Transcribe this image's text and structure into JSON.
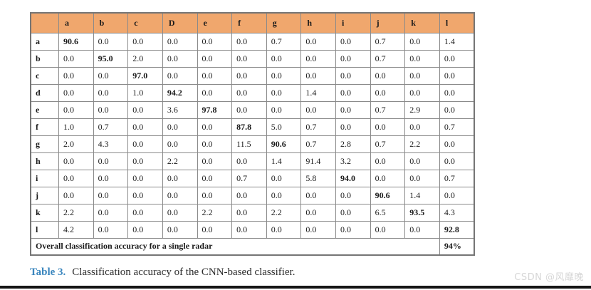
{
  "page": {
    "background": "#ffffff",
    "bottom_bar_color": "#161616"
  },
  "table": {
    "header_bg": "#f0a76d",
    "border_color": "#8a8a8a",
    "columns": [
      "",
      "a",
      "b",
      "c",
      "D",
      "e",
      "f",
      "g",
      "h",
      "i",
      "j",
      "k",
      "l"
    ],
    "rows": [
      {
        "label": "a",
        "bold_col": 0,
        "values": [
          "90.6",
          "0.0",
          "0.0",
          "0.0",
          "0.0",
          "0.0",
          "0.7",
          "0.0",
          "0.0",
          "0.7",
          "0.0",
          "1.4"
        ]
      },
      {
        "label": "b",
        "bold_col": 1,
        "values": [
          "0.0",
          "95.0",
          "2.0",
          "0.0",
          "0.0",
          "0.0",
          "0.0",
          "0.0",
          "0.0",
          "0.7",
          "0.0",
          "0.0"
        ]
      },
      {
        "label": "c",
        "bold_col": 2,
        "values": [
          "0.0",
          "0.0",
          "97.0",
          "0.0",
          "0.0",
          "0.0",
          "0.0",
          "0.0",
          "0.0",
          "0.0",
          "0.0",
          "0.0"
        ]
      },
      {
        "label": "d",
        "bold_col": 3,
        "values": [
          "0.0",
          "0.0",
          "1.0",
          "94.2",
          "0.0",
          "0.0",
          "0.0",
          "1.4",
          "0.0",
          "0.0",
          "0.0",
          "0.0"
        ]
      },
      {
        "label": "e",
        "bold_col": 4,
        "values": [
          "0.0",
          "0.0",
          "0.0",
          "3.6",
          "97.8",
          "0.0",
          "0.0",
          "0.0",
          "0.0",
          "0.7",
          "2.9",
          "0.0"
        ]
      },
      {
        "label": "f",
        "bold_col": 5,
        "values": [
          "1.0",
          "0.7",
          "0.0",
          "0.0",
          "0.0",
          "87.8",
          "5.0",
          "0.7",
          "0.0",
          "0.0",
          "0.0",
          "0.7"
        ]
      },
      {
        "label": "g",
        "bold_col": 6,
        "values": [
          "2.0",
          "4.3",
          "0.0",
          "0.0",
          "0.0",
          "11.5",
          "90.6",
          "0.7",
          "2.8",
          "0.7",
          "2.2",
          "0.0"
        ]
      },
      {
        "label": "h",
        "bold_col": null,
        "values": [
          "0.0",
          "0.0",
          "0.0",
          "2.2",
          "0.0",
          "0.0",
          "1.4",
          "91.4",
          "3.2",
          "0.0",
          "0.0",
          "0.0"
        ]
      },
      {
        "label": "i",
        "bold_col": 8,
        "values": [
          "0.0",
          "0.0",
          "0.0",
          "0.0",
          "0.0",
          "0.7",
          "0.0",
          "5.8",
          "94.0",
          "0.0",
          "0.0",
          "0.7"
        ]
      },
      {
        "label": "j",
        "bold_col": 9,
        "values": [
          "0.0",
          "0.0",
          "0.0",
          "0.0",
          "0.0",
          "0.0",
          "0.0",
          "0.0",
          "0.0",
          "90.6",
          "1.4",
          "0.0"
        ]
      },
      {
        "label": "k",
        "bold_col": 10,
        "values": [
          "2.2",
          "0.0",
          "0.0",
          "0.0",
          "2.2",
          "0.0",
          "2.2",
          "0.0",
          "0.0",
          "6.5",
          "93.5",
          "4.3"
        ]
      },
      {
        "label": "l",
        "bold_col": 11,
        "values": [
          "4.2",
          "0.0",
          "0.0",
          "0.0",
          "0.0",
          "0.0",
          "0.0",
          "0.0",
          "0.0",
          "0.0",
          "0.0",
          "92.8"
        ]
      }
    ],
    "footer": {
      "label": "Overall classification accuracy for a single radar",
      "value": "94%"
    }
  },
  "caption": {
    "label": "Table 3.",
    "label_color": "#3a86be",
    "text": "Classification accuracy of the CNN-based classifier.",
    "text_color": "#2b2b2b"
  },
  "watermark": {
    "text": "CSDN @风靡晚",
    "color": "#d6d6d6"
  }
}
